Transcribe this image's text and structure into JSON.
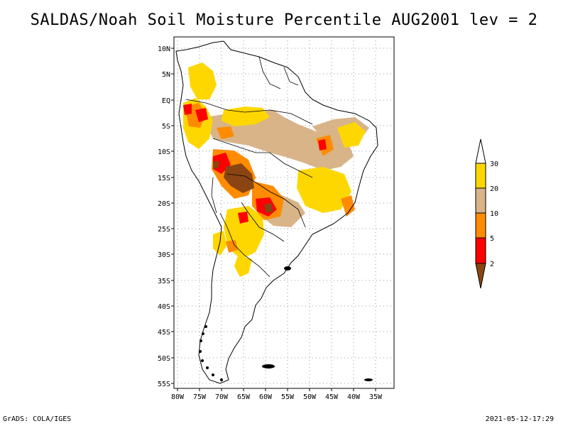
{
  "title": "SALDAS/Noah Soil Moisture Percentile AUG2001 lev = 2",
  "lat_labels": [
    "10N",
    "5N",
    "EQ",
    "5S",
    "10S",
    "15S",
    "20S",
    "25S",
    "30S",
    "35S",
    "40S",
    "45S",
    "50S",
    "55S"
  ],
  "lon_labels": [
    "80W",
    "75W",
    "70W",
    "65W",
    "60W",
    "55W",
    "50W",
    "45W",
    "40W",
    "35W"
  ],
  "legend": {
    "labels": [
      "30",
      "20",
      "10",
      "5",
      "2"
    ],
    "colors": {
      "above_30": "#ffffff",
      "band_20_30": "#ffd700",
      "band_10_20": "#d8b488",
      "band_5_10": "#ff8c00",
      "band_2_5": "#ff0000",
      "below_2": "#8b4513"
    }
  },
  "footer": {
    "left": "GrADS: COLA/IGES",
    "right": "2021-05-12-17:29"
  }
}
